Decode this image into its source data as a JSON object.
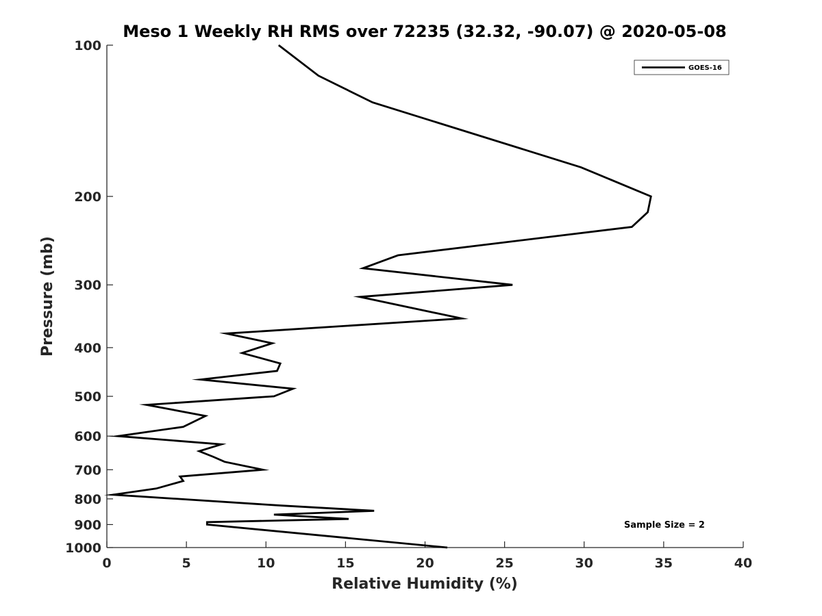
{
  "chart_data": {
    "type": "line",
    "title": "Meso 1 Weekly RH RMS over 72235 (32.32, -90.07) @ 2020-05-08",
    "xlabel": "Relative Humidity (%)",
    "ylabel": "Pressure (mb)",
    "xlim": [
      0,
      40
    ],
    "ylim": [
      100,
      1000
    ],
    "y_scale": "log",
    "y_reversed": true,
    "x_ticks": [
      0,
      5,
      10,
      15,
      20,
      25,
      30,
      35,
      40
    ],
    "y_ticks": [
      100,
      200,
      300,
      400,
      500,
      600,
      700,
      800,
      900,
      1000
    ],
    "grid": false,
    "legend_position": "top-right",
    "annotation": "Sample Size = 2",
    "colors": {
      "series": "#000000",
      "axes": "#262626"
    },
    "series": [
      {
        "name": "GOES-16",
        "x": [
          10.8,
          13.3,
          16.7,
          29.8,
          34.2,
          34.0,
          33.0,
          18.3,
          16.1,
          25.5,
          15.9,
          22.3,
          7.5,
          10.4,
          8.5,
          10.9,
          10.7,
          5.9,
          11.7,
          10.5,
          2.5,
          6.2,
          4.8,
          0.7,
          7.2,
          5.8,
          6.7,
          7.4,
          9.8,
          4.6,
          4.8,
          3.1,
          0.4,
          11.0,
          16.8,
          10.5,
          15.2,
          6.3,
          6.3,
          21.4
        ],
        "y": [
          100,
          115,
          130,
          175,
          200,
          215,
          230,
          262,
          278,
          300,
          317,
          350,
          375,
          392,
          410,
          430,
          445,
          463,
          483,
          500,
          520,
          547,
          575,
          600,
          623,
          643,
          660,
          675,
          700,
          722,
          737,
          763,
          785,
          825,
          845,
          860,
          877,
          890,
          900,
          1000
        ]
      }
    ]
  }
}
